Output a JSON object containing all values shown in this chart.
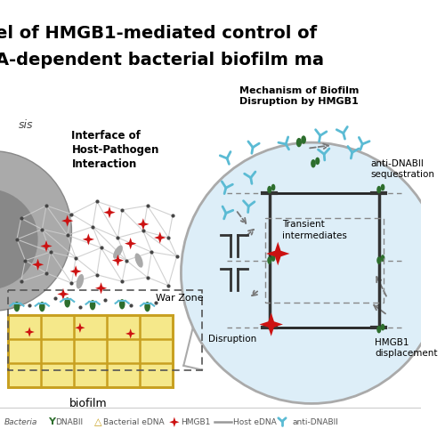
{
  "title_line1": "el of HMGB1-mediated control of",
  "title_line2": "A-dependent bacterial biofilm ma",
  "bg_color": "#ffffff",
  "circle_fill": "#ddeef8",
  "circle_edge": "#999999",
  "text_color": "#000000",
  "red_star_color": "#cc1111",
  "green_color": "#2d6e2d",
  "cyan_color": "#5bbbd4",
  "gold_color": "#c8a020",
  "gray_color": "#999999",
  "war_zone_text": "War Zone",
  "biofilm_text": "biofilm",
  "interface_text": "Interface of\nHost-Pathogen\nInteraction",
  "mechanism_text": "Mechanism of Biofilm\nDisruption by HMGB1",
  "anti_dnabii_text": "anti-DNABII\nsequestration",
  "transient_text": "Transient\nintermediates",
  "disruption_text": "Disruption",
  "hmgb1_text": "HMGB1\ndisplacement"
}
